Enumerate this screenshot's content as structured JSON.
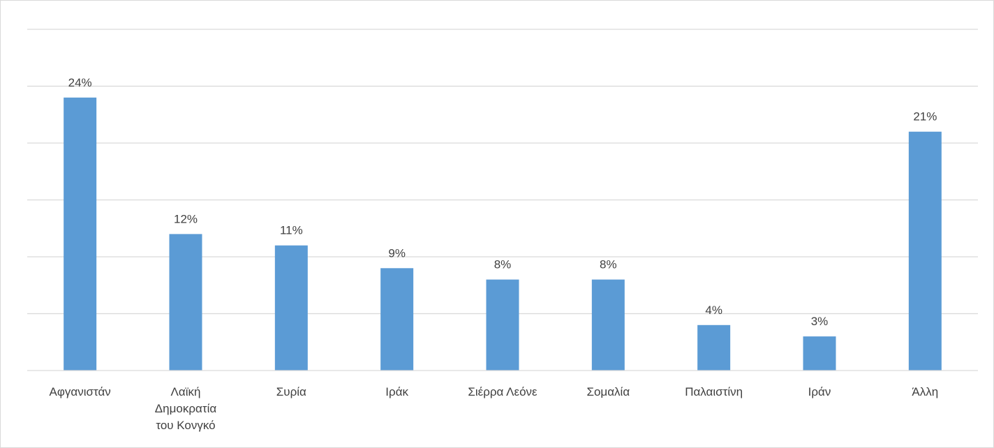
{
  "chart_data": {
    "type": "bar",
    "categories": [
      "Αφγανιστάν",
      "Λαϊκή Δημοκρατία του Κονγκό",
      "Συρία",
      "Ιράκ",
      "Σιέρρα Λεόνε",
      "Σομαλία",
      "Παλαιστίνη",
      "Ιράν",
      "Άλλη"
    ],
    "category_lines": [
      [
        "Αφγανιστάν"
      ],
      [
        "Λαϊκή",
        "Δημοκρατία",
        "του Κονγκό"
      ],
      [
        "Συρία"
      ],
      [
        "Ιράκ"
      ],
      [
        "Σιέρρα Λεόνε"
      ],
      [
        "Σομαλία"
      ],
      [
        "Παλαιστίνη"
      ],
      [
        "Ιράν"
      ],
      [
        "Άλλη"
      ]
    ],
    "values": [
      24,
      12,
      11,
      9,
      8,
      8,
      4,
      3,
      21
    ],
    "data_labels": [
      "24%",
      "12%",
      "11%",
      "9%",
      "8%",
      "8%",
      "4%",
      "3%",
      "21%"
    ],
    "unit": "%",
    "title": "",
    "xlabel": "",
    "ylabel": "",
    "ylim": [
      0,
      30
    ],
    "gridlines": [
      0,
      5,
      10,
      15,
      20,
      25,
      30
    ],
    "grid": true,
    "legend": "none",
    "bar_color": "#5b9bd5"
  }
}
